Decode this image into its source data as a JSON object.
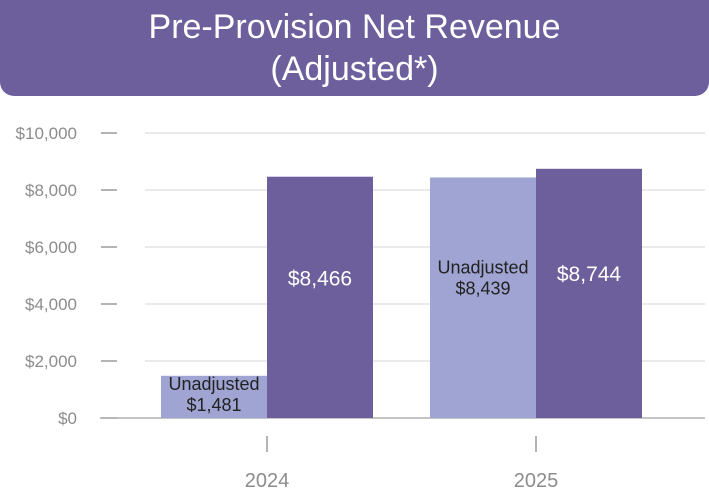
{
  "chart_data": {
    "type": "bar",
    "title_line1": "Pre-Provision Net Revenue",
    "title_line2": "(Adjusted*)",
    "categories": [
      "2024",
      "2025"
    ],
    "series": [
      {
        "name": "Unadjusted",
        "color": "#9fa4d2",
        "values": [
          1481,
          8439
        ],
        "labels": [
          [
            "Unadjusted",
            "$1,481"
          ],
          [
            "Unadjusted",
            "$8,439"
          ]
        ]
      },
      {
        "name": "Adjusted",
        "color": "#6c5f9c",
        "values": [
          8466,
          8744
        ],
        "labels": [
          [
            "$8,466"
          ],
          [
            "$8,744"
          ]
        ]
      }
    ],
    "yticks": [
      0,
      2000,
      4000,
      6000,
      8000,
      10000
    ],
    "ytick_labels": [
      "$0",
      "$2,000",
      "$4,000",
      "$6,000",
      "$8,000",
      "$10,000"
    ],
    "ylim": [
      0,
      10000
    ],
    "grid": true,
    "xlabel": "",
    "ylabel": ""
  }
}
